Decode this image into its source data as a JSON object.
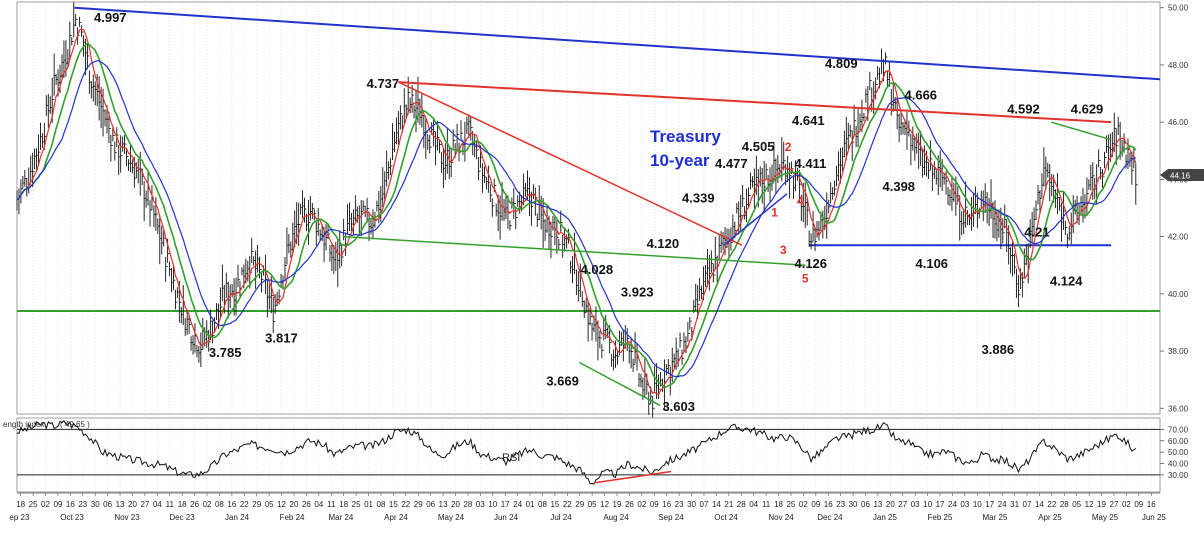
{
  "chart_data": {
    "type": "line",
    "title": "Treasury\n10-year",
    "indicator_label": "ength index",
    "indicator_value": "( 49.65 )",
    "rsi_label": "RSI",
    "last_price_label": "44.16",
    "price_ylim": [
      35.8,
      50.2
    ],
    "price_ticks": [
      "50.00",
      "48.00",
      "46.00",
      "44.00",
      "42.00",
      "40.00",
      "38.00",
      "36.00"
    ],
    "price_tick_values": [
      50,
      48,
      46,
      44,
      42,
      40,
      38,
      36
    ],
    "rsi_ylim": [
      15,
      80
    ],
    "rsi_ticks": [
      "70.00",
      "60.00",
      "50.00",
      "40.00",
      "30.00"
    ],
    "rsi_tick_values": [
      70,
      60,
      50,
      40,
      30
    ],
    "day_ticks": [
      "18",
      "25",
      "02",
      "09",
      "16",
      "23",
      "30",
      "06",
      "13",
      "20",
      "27",
      "04",
      "11",
      "18",
      "26",
      "02",
      "08",
      "16",
      "22",
      "29",
      "05",
      "12",
      "20",
      "26",
      "04",
      "11",
      "18",
      "25",
      "01",
      "08",
      "15",
      "22",
      "29",
      "06",
      "13",
      "20",
      "28",
      "03",
      "10",
      "17",
      "24",
      "01",
      "08",
      "15",
      "22",
      "29",
      "05",
      "12",
      "19",
      "26",
      "02",
      "09",
      "16",
      "23",
      "30",
      "07",
      "14",
      "21",
      "28",
      "04",
      "11",
      "18",
      "25",
      "02",
      "09",
      "16",
      "23",
      "30",
      "06",
      "13",
      "20",
      "27",
      "03",
      "10",
      "17",
      "24",
      "03",
      "10",
      "17",
      "24",
      "31",
      "07",
      "14",
      "22",
      "28",
      "05",
      "12",
      "19",
      "27",
      "02",
      "09",
      "16"
    ],
    "month_labels": [
      {
        "label": "ep 23",
        "x": 0.2
      },
      {
        "label": "Oct 23",
        "x": 4.5
      },
      {
        "label": "Nov 23",
        "x": 9
      },
      {
        "label": "Dec 23",
        "x": 13.5
      },
      {
        "label": "Jan 24",
        "x": 18
      },
      {
        "label": "Feb 24",
        "x": 22.5
      },
      {
        "label": "Mar 24",
        "x": 26.5
      },
      {
        "label": "Apr 24",
        "x": 31
      },
      {
        "label": "May 24",
        "x": 35.5
      },
      {
        "label": "Jun 24",
        "x": 40
      },
      {
        "label": "Jul 24",
        "x": 44.5
      },
      {
        "label": "Aug 24",
        "x": 49
      },
      {
        "label": "Sep 24",
        "x": 53.5
      },
      {
        "label": "Oct 24",
        "x": 58
      },
      {
        "label": "Nov 24",
        "x": 62.5
      },
      {
        "label": "Dec 24",
        "x": 66.5
      },
      {
        "label": "Jan 25",
        "x": 71
      },
      {
        "label": "Feb 25",
        "x": 75.5
      },
      {
        "label": "Mar 25",
        "x": 80
      },
      {
        "label": "Apr 25",
        "x": 84.5
      },
      {
        "label": "May 25",
        "x": 89
      },
      {
        "label": "Jun 25",
        "x": 93
      }
    ],
    "x_range": [
      0,
      93.5
    ],
    "price_path": [
      [
        0,
        43.3
      ],
      [
        1,
        44.2
      ],
      [
        2,
        45.5
      ],
      [
        3,
        47.2
      ],
      [
        4,
        48.4
      ],
      [
        4.8,
        49.6
      ],
      [
        5.4,
        48.9
      ],
      [
        6,
        47.6
      ],
      [
        7,
        46.4
      ],
      [
        8,
        45.2
      ],
      [
        9,
        44.8
      ],
      [
        10,
        44.1
      ],
      [
        11,
        43.0
      ],
      [
        12,
        41.6
      ],
      [
        13,
        40.1
      ],
      [
        14,
        38.9
      ],
      [
        15,
        38.2
      ],
      [
        16,
        38.9
      ],
      [
        17,
        40.0
      ],
      [
        18,
        40.3
      ],
      [
        19,
        41.2
      ],
      [
        20,
        40.6
      ],
      [
        21,
        39.4
      ],
      [
        22,
        41.3
      ],
      [
        23,
        42.5
      ],
      [
        24,
        42.9
      ],
      [
        25,
        42.1
      ],
      [
        26,
        41.1
      ],
      [
        27,
        42.2
      ],
      [
        28,
        42.7
      ],
      [
        29,
        42.5
      ],
      [
        30,
        43.6
      ],
      [
        31,
        45.6
      ],
      [
        32,
        46.7
      ],
      [
        33,
        46.4
      ],
      [
        34,
        45.3
      ],
      [
        35,
        44.6
      ],
      [
        36,
        45.2
      ],
      [
        37,
        45.6
      ],
      [
        38,
        44.3
      ],
      [
        39,
        43.4
      ],
      [
        40,
        42.6
      ],
      [
        41,
        43.1
      ],
      [
        42,
        43.5
      ],
      [
        43,
        42.5
      ],
      [
        44,
        42.4
      ],
      [
        45,
        41.7
      ],
      [
        46,
        40.4
      ],
      [
        47,
        38.8
      ],
      [
        48,
        38.4
      ],
      [
        49,
        37.9
      ],
      [
        50,
        38.5
      ],
      [
        51,
        36.9
      ],
      [
        52,
        36.3
      ],
      [
        53,
        37.3
      ],
      [
        54,
        37.7
      ],
      [
        55,
        38.6
      ],
      [
        56,
        40.1
      ],
      [
        57,
        41.0
      ],
      [
        58,
        41.9
      ],
      [
        59,
        42.7
      ],
      [
        60,
        43.5
      ],
      [
        61,
        44.0
      ],
      [
        62,
        44.3
      ],
      [
        63,
        44.6
      ],
      [
        64,
        43.6
      ],
      [
        65,
        41.9
      ],
      [
        66,
        42.6
      ],
      [
        67,
        44.3
      ],
      [
        68,
        45.3
      ],
      [
        69,
        46.3
      ],
      [
        70,
        47.3
      ],
      [
        71,
        47.9
      ],
      [
        71.8,
        46.6
      ],
      [
        72,
        45.8
      ],
      [
        73,
        45.7
      ],
      [
        74,
        44.6
      ],
      [
        75,
        44.2
      ],
      [
        76,
        44.0
      ],
      [
        77,
        43.0
      ],
      [
        78,
        42.6
      ],
      [
        79,
        43.4
      ],
      [
        80,
        42.8
      ],
      [
        81,
        42.0
      ],
      [
        82,
        40.2
      ],
      [
        83,
        42.1
      ],
      [
        84,
        44.4
      ],
      [
        85,
        43.3
      ],
      [
        86,
        42.3
      ],
      [
        87,
        43.0
      ],
      [
        88,
        43.8
      ],
      [
        89,
        44.7
      ],
      [
        90,
        45.6
      ],
      [
        91,
        44.8
      ],
      [
        91.6,
        44.1
      ]
    ],
    "rsi_path": [
      [
        0,
        68
      ],
      [
        1,
        71
      ],
      [
        2,
        75
      ],
      [
        3,
        73
      ],
      [
        4,
        76
      ],
      [
        5,
        72
      ],
      [
        6,
        63
      ],
      [
        7,
        50
      ],
      [
        8,
        47
      ],
      [
        9,
        44
      ],
      [
        10,
        42
      ],
      [
        11,
        40
      ],
      [
        12,
        38
      ],
      [
        13,
        33
      ],
      [
        14,
        30
      ],
      [
        15,
        31
      ],
      [
        16,
        38
      ],
      [
        17,
        48
      ],
      [
        18,
        52
      ],
      [
        19,
        57
      ],
      [
        20,
        55
      ],
      [
        21,
        53
      ],
      [
        22,
        50
      ],
      [
        23,
        55
      ],
      [
        24,
        60
      ],
      [
        25,
        57
      ],
      [
        26,
        48
      ],
      [
        27,
        53
      ],
      [
        28,
        56
      ],
      [
        29,
        55
      ],
      [
        30,
        60
      ],
      [
        31,
        68
      ],
      [
        32,
        70
      ],
      [
        33,
        63
      ],
      [
        34,
        50
      ],
      [
        35,
        48
      ],
      [
        36,
        56
      ],
      [
        37,
        60
      ],
      [
        38,
        48
      ],
      [
        39,
        45
      ],
      [
        40,
        42
      ],
      [
        41,
        48
      ],
      [
        42,
        52
      ],
      [
        43,
        47
      ],
      [
        44,
        46
      ],
      [
        45,
        40
      ],
      [
        46,
        35
      ],
      [
        47,
        23
      ],
      [
        48,
        32
      ],
      [
        49,
        31
      ],
      [
        50,
        40
      ],
      [
        51,
        36
      ],
      [
        52,
        32
      ],
      [
        53,
        41
      ],
      [
        54,
        45
      ],
      [
        55,
        50
      ],
      [
        56,
        56
      ],
      [
        57,
        63
      ],
      [
        58,
        70
      ],
      [
        59,
        72
      ],
      [
        60,
        70
      ],
      [
        61,
        66
      ],
      [
        62,
        62
      ],
      [
        63,
        64
      ],
      [
        64,
        57
      ],
      [
        65,
        44
      ],
      [
        66,
        52
      ],
      [
        67,
        62
      ],
      [
        68,
        64
      ],
      [
        69,
        68
      ],
      [
        70,
        70
      ],
      [
        71,
        73
      ],
      [
        72,
        60
      ],
      [
        73,
        58
      ],
      [
        74,
        50
      ],
      [
        75,
        48
      ],
      [
        76,
        51
      ],
      [
        77,
        44
      ],
      [
        78,
        40
      ],
      [
        79,
        48
      ],
      [
        80,
        44
      ],
      [
        81,
        42
      ],
      [
        82,
        34
      ],
      [
        83,
        46
      ],
      [
        84,
        60
      ],
      [
        85,
        52
      ],
      [
        86,
        44
      ],
      [
        87,
        48
      ],
      [
        88,
        54
      ],
      [
        89,
        60
      ],
      [
        90,
        66
      ],
      [
        91,
        56
      ],
      [
        91.6,
        49.65
      ]
    ],
    "horizontal_lines": [
      {
        "name": "support-39.4",
        "y": 39.4,
        "color": "#33a02c"
      },
      {
        "name": "support-41.7",
        "y": 41.7,
        "x1": 64.8,
        "x2": 89.5,
        "color": "#2233cc"
      }
    ],
    "trendlines": [
      {
        "name": "long-downtrend",
        "color": "#2233cc",
        "width": 2,
        "points": [
          [
            4.7,
            50.0
          ],
          [
            93.5,
            47.5
          ]
        ]
      },
      {
        "name": "red-resistance",
        "color": "#e0332b",
        "width": 2,
        "points": [
          [
            31.2,
            47.4
          ],
          [
            89.5,
            46.0
          ]
        ]
      },
      {
        "name": "red-fall",
        "color": "#e0332b",
        "width": 1.5,
        "points": [
          [
            31.2,
            47.4
          ],
          [
            59.3,
            41.7
          ]
        ]
      },
      {
        "name": "green-channel",
        "color": "#33a02c",
        "width": 1.5,
        "points": [
          [
            26.7,
            42.0
          ],
          [
            64.5,
            41.0
          ]
        ]
      },
      {
        "name": "green-low",
        "color": "#33a02c",
        "width": 1.5,
        "points": [
          [
            46,
            37.6
          ],
          [
            52.6,
            36.1
          ]
        ]
      },
      {
        "name": "blue-rise",
        "color": "#2233cc",
        "width": 1.5,
        "points": [
          [
            57.8,
            41.7
          ],
          [
            63.0,
            43.5
          ]
        ]
      },
      {
        "name": "green-recent",
        "color": "#33a02c",
        "width": 1.5,
        "points": [
          [
            84.6,
            46.0
          ],
          [
            89.4,
            45.4
          ]
        ]
      }
    ],
    "rsi_trendline": {
      "color": "#e0332b",
      "points": [
        [
          47.2,
          23
        ],
        [
          53.5,
          33
        ]
      ]
    },
    "annotations": [
      {
        "text": "4.997",
        "x": 6.3,
        "y": 49.5
      },
      {
        "text": "3.785",
        "x": 15.7,
        "y": 37.8
      },
      {
        "text": "3.817",
        "x": 20.3,
        "y": 38.3
      },
      {
        "text": "4.737",
        "x": 28.6,
        "y": 47.2
      },
      {
        "text": "4.028",
        "x": 46.1,
        "y": 40.7
      },
      {
        "text": "3.923",
        "x": 49.4,
        "y": 39.9
      },
      {
        "text": "3.669",
        "x": 43.3,
        "y": 36.8
      },
      {
        "text": "3.603",
        "x": 52.8,
        "y": 35.9
      },
      {
        "text": "4.120",
        "x": 51.5,
        "y": 41.6
      },
      {
        "text": "4.339",
        "x": 54.4,
        "y": 43.2
      },
      {
        "text": "4.477",
        "x": 57.1,
        "y": 44.4
      },
      {
        "text": "4.505",
        "x": 59.3,
        "y": 45.0
      },
      {
        "text": "4.641",
        "x": 63.4,
        "y": 45.9
      },
      {
        "text": "4.411",
        "x": 63.6,
        "y": 44.4
      },
      {
        "text": "4.126",
        "x": 63.6,
        "y": 40.9
      },
      {
        "text": "4.809",
        "x": 66.1,
        "y": 47.9
      },
      {
        "text": "4.398",
        "x": 70.8,
        "y": 43.6
      },
      {
        "text": "4.666",
        "x": 72.6,
        "y": 46.8
      },
      {
        "text": "4.106",
        "x": 73.5,
        "y": 40.9
      },
      {
        "text": "3.886",
        "x": 78.9,
        "y": 37.9
      },
      {
        "text": "4.592",
        "x": 81.0,
        "y": 46.3
      },
      {
        "text": "4.629",
        "x": 86.2,
        "y": 46.3
      },
      {
        "text": "4.21",
        "x": 82.4,
        "y": 42.0
      },
      {
        "text": "4.124",
        "x": 84.5,
        "y": 40.3
      }
    ],
    "wave_labels": [
      {
        "text": "1",
        "x": 61.7,
        "y": 42.7
      },
      {
        "text": "2",
        "x": 62.8,
        "y": 45.0
      },
      {
        "text": "3",
        "x": 62.4,
        "y": 41.4
      },
      {
        "text": "4",
        "x": 63.8,
        "y": 43.1
      },
      {
        "text": "5",
        "x": 64.2,
        "y": 40.4
      }
    ]
  }
}
